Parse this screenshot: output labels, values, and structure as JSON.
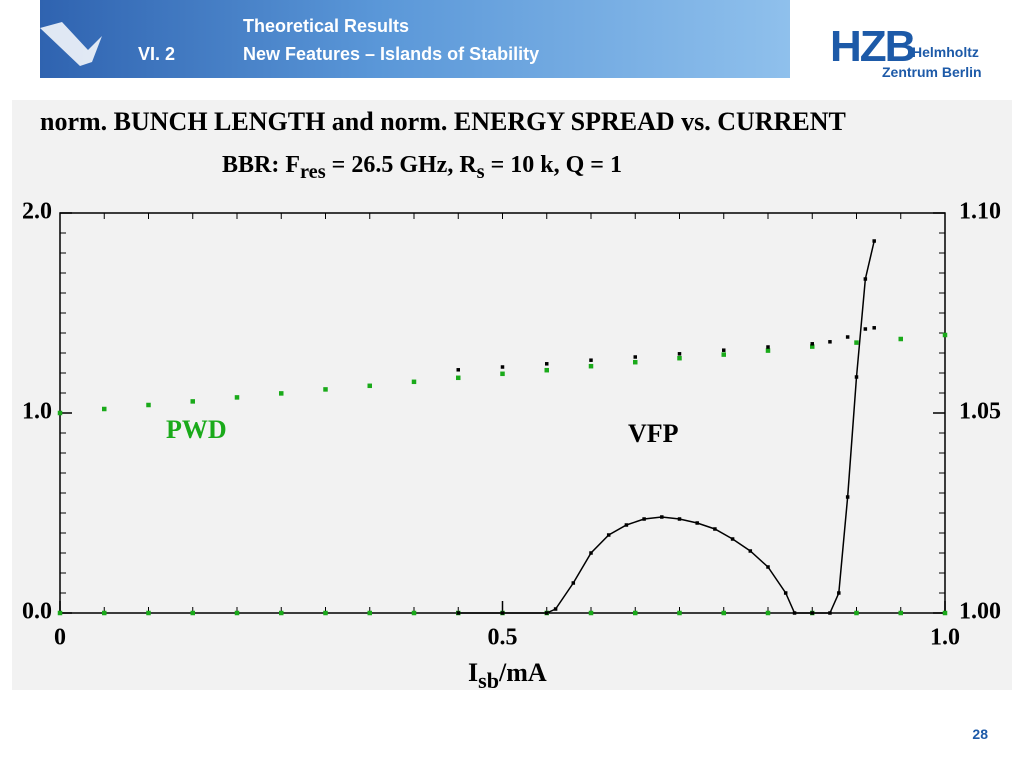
{
  "header": {
    "title": "Theoretical Results",
    "section": "VI.  2",
    "subtitle": "New Features – Islands of Stability"
  },
  "logo": {
    "name": "HZB",
    "line1": "Helmholtz",
    "line2": "Zentrum Berlin"
  },
  "page_number": "28",
  "chart_data": {
    "type": "line",
    "title": "norm. BUNCH LENGTH and norm. ENERGY SPREAD vs. CURRENT",
    "subtitle": [
      {
        "text": "BBR: F"
      },
      {
        "text": "res",
        "sub": true
      },
      {
        "text": " = 26.5 GHz, R"
      },
      {
        "text": "s",
        "sub": true
      },
      {
        "text": "  = 10 k, Q = 1"
      }
    ],
    "xlabel": [
      {
        "text": "I"
      },
      {
        "text": "sb",
        "sub": true
      },
      {
        "text": "/mA"
      }
    ],
    "annotations": [
      {
        "text": "PWD",
        "color": "#1aaa1a"
      },
      {
        "text": "VFP",
        "color": "#000000"
      }
    ],
    "xlim": [
      0,
      1
    ],
    "xticks": [
      0,
      0.5,
      {
        "value": 1,
        "label": "1.0"
      }
    ],
    "ylim": [
      0,
      2
    ],
    "yticks": [
      {
        "value": 0,
        "label": "0.0"
      },
      {
        "value": 1,
        "label": "1.0"
      },
      {
        "value": 2,
        "label": "2.0"
      }
    ],
    "y2lim": [
      1,
      1.1
    ],
    "y2ticks": [
      {
        "value": 1,
        "label": "1.00"
      },
      1.05,
      {
        "value": 1.1,
        "label": "1.10"
      }
    ],
    "series": [
      {
        "name": "PWD bunch length",
        "color": "#1aaa1a",
        "style": "markers",
        "x": [
          0,
          0.05,
          0.1,
          0.15,
          0.2,
          0.25,
          0.3,
          0.35,
          0.4,
          0.45,
          0.5,
          0.55,
          0.6,
          0.65,
          0.7,
          0.75,
          0.8,
          0.85,
          0.9,
          0.95,
          1
        ],
        "values": [
          0,
          0,
          0,
          0,
          0,
          0,
          0,
          0,
          0,
          0,
          0,
          0,
          0,
          0,
          0,
          0,
          0,
          0,
          0,
          0,
          0
        ]
      },
      {
        "name": "PWD energy spread",
        "color": "#1aaa1a",
        "style": "markers",
        "axis": "y2",
        "x": [
          0,
          0.05,
          0.1,
          0.15,
          0.2,
          0.25,
          0.3,
          0.35,
          0.4,
          0.45,
          0.5,
          0.55,
          0.6,
          0.65,
          0.7,
          0.75,
          0.8,
          0.85,
          0.9,
          0.95,
          1
        ],
        "values": [
          1.05,
          1.051,
          1.052,
          1.0529,
          1.0539,
          1.0549,
          1.0559,
          1.0568,
          1.0578,
          1.0588,
          1.0598,
          1.0607,
          1.0617,
          1.0627,
          1.0637,
          1.0646,
          1.0656,
          1.0666,
          1.0676,
          1.0685,
          1.0695
        ]
      },
      {
        "name": "VFP energy spread",
        "color": "#000000",
        "style": "markers",
        "axis": "y2",
        "x": [
          0.45,
          0.5,
          0.55,
          0.6,
          0.65,
          0.7,
          0.75,
          0.8,
          0.85,
          0.87,
          0.89,
          0.91,
          0.92
        ],
        "values": [
          1.0608,
          1.0615,
          1.0623,
          1.0632,
          1.064,
          1.0648,
          1.0657,
          1.0665,
          1.0673,
          1.0678,
          1.069,
          1.071,
          1.0713
        ]
      },
      {
        "name": "VFP bunch length",
        "color": "#000000",
        "style": "line+markers",
        "x": [
          0.45,
          0.5,
          0.55,
          0.56,
          0.58,
          0.6,
          0.62,
          0.64,
          0.66,
          0.68,
          0.7,
          0.72,
          0.74,
          0.76,
          0.78,
          0.8,
          0.82,
          0.83,
          0.85,
          0.87,
          0.88,
          0.89,
          0.9,
          0.91,
          0.92
        ],
        "values": [
          0,
          0,
          0,
          0.02,
          0.15,
          0.3,
          0.39,
          0.44,
          0.47,
          0.48,
          0.47,
          0.45,
          0.42,
          0.37,
          0.31,
          0.23,
          0.1,
          0,
          0,
          0,
          0.1,
          0.58,
          1.18,
          1.67,
          1.86
        ]
      }
    ]
  }
}
